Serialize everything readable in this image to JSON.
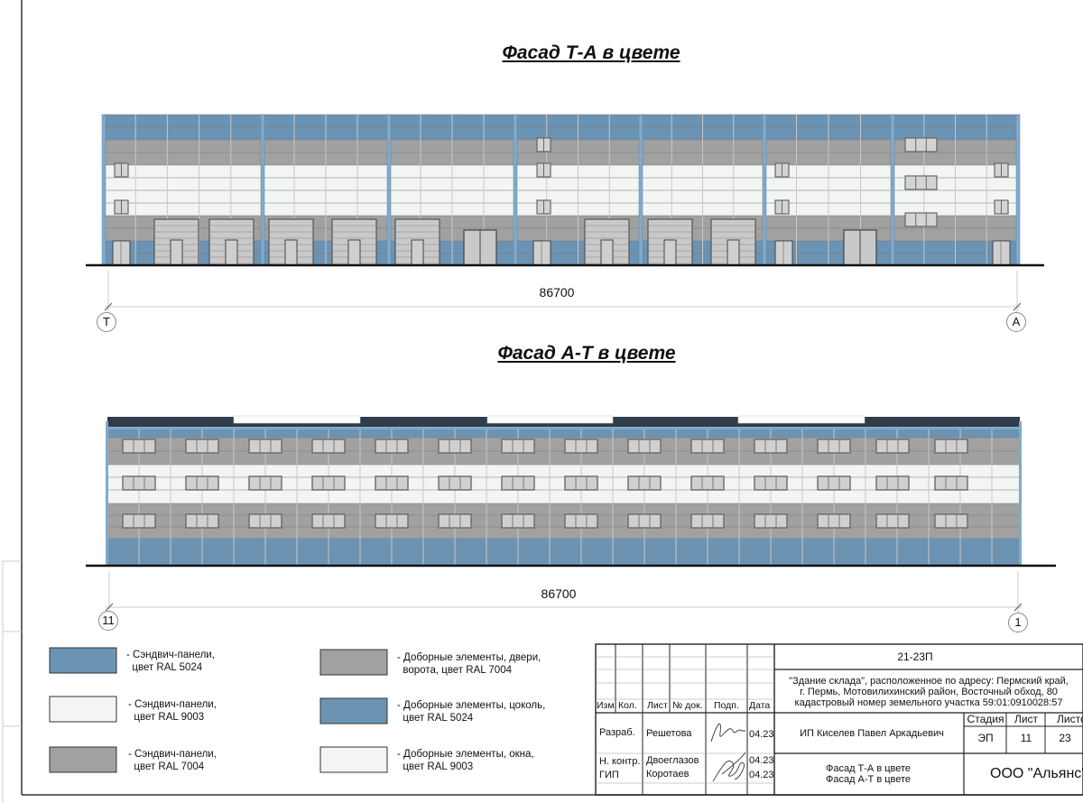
{
  "facade_top": {
    "title": "Фасад Т-А в цвете",
    "dimension": "86700",
    "axis_left": "Т",
    "axis_right": "А"
  },
  "facade_bottom": {
    "title": "Фасад А-Т в цвете",
    "dimension": "86700",
    "axis_left": "11",
    "axis_right": "1"
  },
  "colors": {
    "ral5024": "#6b93b3",
    "ral9003": "#f2f5f2",
    "ral7004": "#a1a1a1",
    "pilaster": "#82aacb"
  },
  "legend": [
    {
      "text": "- Сэндвич-панели,\n  цвет RAL 5024",
      "color": "#6b93b3"
    },
    {
      "text": "- Сэндвич-панели,\n  цвет RAL 9003",
      "color": "#f2f5f2"
    },
    {
      "text": "- Сэндвич-панели,\n  цвет RAL 7004",
      "color": "#a1a1a1"
    },
    {
      "text": "- Доборные элементы, двери,\n  ворота, цвет RAL 7004",
      "color": "#a1a1a1"
    },
    {
      "text": "- Доборные элементы, цоколь,\n  цвет RAL 5024",
      "color": "#6b93b3"
    },
    {
      "text": "- Доборные элементы, окна,\n  цвет RAL 9003",
      "color": "#f2f5f2"
    }
  ],
  "title_block": {
    "code": "21-23П",
    "object": "\"Здание склада\", расположенное по адресу: Пермский край,",
    "object2": "г. Пермь, Мотовилихинский район, Восточный обход, 80",
    "object3": "кадастровый номер земельного участка 59:01:0910028:57",
    "headers": [
      "Изм.",
      "Кол.",
      "Лист",
      "№ док.",
      "Подп.",
      "Дата"
    ],
    "people": [
      {
        "role": "Разраб.",
        "name": "Решетова",
        "date": "04.23"
      },
      {
        "role": "Н. контр.",
        "name": "Двоеглазов",
        "date": "04.23"
      },
      {
        "role": "ГИП",
        "name": "Коротаев",
        "date": "04.23"
      }
    ],
    "organization_author": "ИП Киселев Павел Аркадьевич",
    "stage_label": "Стадия",
    "sheet_label": "Лист",
    "sheets_label": "Листов",
    "stage": "ЭП",
    "sheet": "11",
    "sheets": "23",
    "sheet_title1": "Фасад Т-А в цвете",
    "sheet_title2": "Фасад А-Т в цвете",
    "company": "ООО \"Альянс\""
  }
}
